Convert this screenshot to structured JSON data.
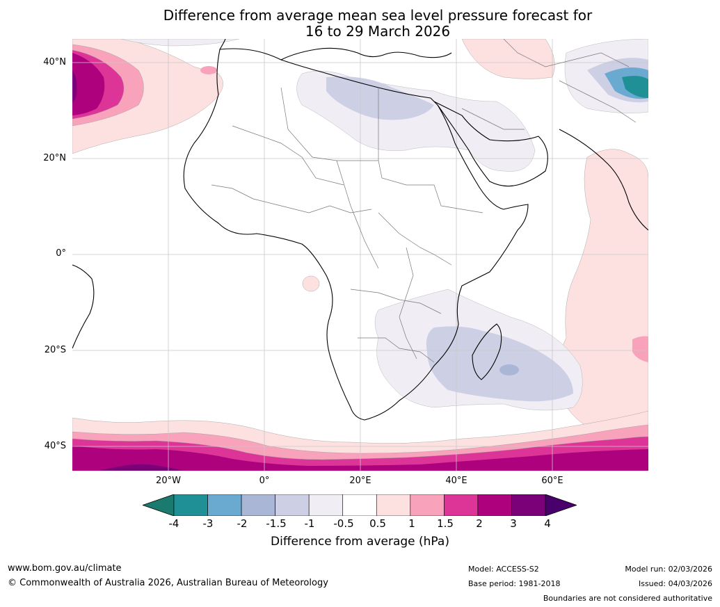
{
  "title": {
    "line1": "Difference from average mean sea level pressure forecast for",
    "line2": "16 to 29 March 2026"
  },
  "axes": {
    "y_labels": [
      "40°N",
      "20°N",
      "0°",
      "20°S",
      "40°S"
    ],
    "x_labels": [
      "20°W",
      "0°",
      "20°E",
      "40°E",
      "60°E"
    ]
  },
  "colorbar": {
    "ticks": [
      "-4",
      "-3",
      "-2",
      "-1.5",
      "-1",
      "-0.5",
      "0.5",
      "1",
      "1.5",
      "2",
      "3",
      "4"
    ],
    "title": "Difference from average (hPa)",
    "colors": [
      "#1a7a6e",
      "#1e9096",
      "#6aaad0",
      "#a9b6d6",
      "#cdd0e5",
      "#f1edf4",
      "#ffffff",
      "#fde0e0",
      "#f8a2bb",
      "#dd3497",
      "#ae017e",
      "#7a0177",
      "#49006a"
    ]
  },
  "footer": {
    "website": "www.bom.gov.au/climate",
    "copyright": "© Commonwealth of Australia 2026, Australian Bureau of Meteorology",
    "model": "Model: ACCESS-S2",
    "base_period": "Base period: 1981-2018",
    "model_run": "Model run: 02/03/2026",
    "issued": "Issued: 04/03/2026",
    "disclaimer": "Boundaries are not considered authoritative"
  }
}
